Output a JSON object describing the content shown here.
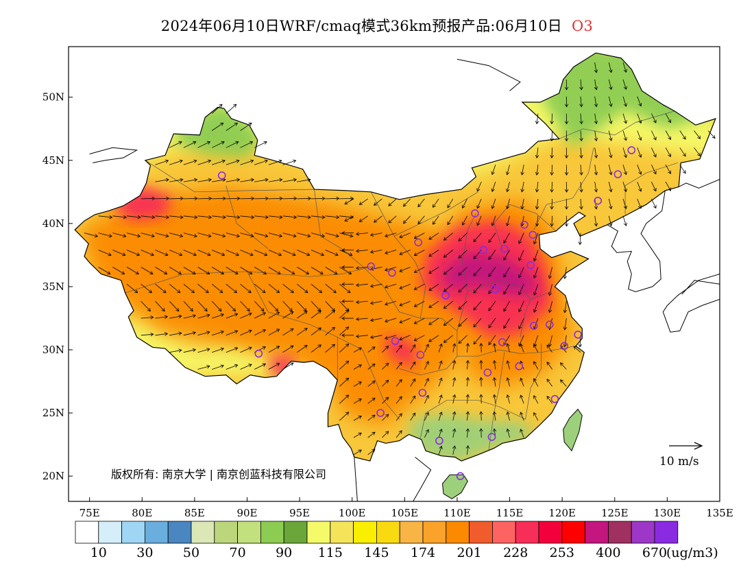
{
  "title": {
    "text": "2024年06月10日WRF/cmaq模式36km预报产品:06月10日",
    "species": "O3"
  },
  "copyright": "版权所有: 南京大学 | 南京创蓝科技有限公司",
  "wind_scale_label": "10  m/s",
  "colorbar": {
    "colors": [
      "#ffffff",
      "#d6eefa",
      "#9fd6f3",
      "#6aaede",
      "#4a86c0",
      "#dbe8b6",
      "#bcd67c",
      "#c2e07e",
      "#8ccc52",
      "#6aa63a",
      "#f4fa6a",
      "#f4e45a",
      "#fbef00",
      "#f9da10",
      "#f8b445",
      "#fba22a",
      "#fb8a00",
      "#f05c2c",
      "#fd6363",
      "#f72e57",
      "#f3003c",
      "#ff0000",
      "#c3167e",
      "#a03060",
      "#9c37c7",
      "#8a2be2"
    ],
    "labels": [
      "10",
      "30",
      "50",
      "70",
      "90",
      "115",
      "145",
      "174",
      "201",
      "228",
      "253",
      "400",
      "670"
    ],
    "unit": "(ug/m3)"
  },
  "axes": {
    "lon_ticks": [
      "75E",
      "80E",
      "85E",
      "90E",
      "95E",
      "100E",
      "105E",
      "110E",
      "115E",
      "120E",
      "125E",
      "130E",
      "135E"
    ],
    "lat_ticks": [
      "20N",
      "25N",
      "30N",
      "35N",
      "40N",
      "45N",
      "50N"
    ]
  },
  "map": {
    "lon_range": [
      73,
      135
    ],
    "lat_range": [
      18,
      54
    ],
    "layers": {
      "land_outside": "#ffffff",
      "base_fill": "#f8c73a",
      "north_green": "#8ccc52",
      "yellow_belt": "#f4fa6a",
      "orange_core": "#fb8a00",
      "red_core": "#f72e57",
      "purple_core": "#c3167e",
      "south_green": "#9dd07a"
    },
    "stations": [
      {
        "lon": 87.6,
        "lat": 43.8
      },
      {
        "lon": 91.1,
        "lat": 29.7
      },
      {
        "lon": 101.8,
        "lat": 36.6
      },
      {
        "lon": 103.8,
        "lat": 36.1
      },
      {
        "lon": 106.3,
        "lat": 38.5
      },
      {
        "lon": 111.7,
        "lat": 40.8
      },
      {
        "lon": 116.4,
        "lat": 39.9
      },
      {
        "lon": 117.2,
        "lat": 39.1
      },
      {
        "lon": 114.5,
        "lat": 38.0
      },
      {
        "lon": 112.5,
        "lat": 37.9
      },
      {
        "lon": 117.0,
        "lat": 36.7
      },
      {
        "lon": 113.6,
        "lat": 34.8
      },
      {
        "lon": 108.9,
        "lat": 34.3
      },
      {
        "lon": 104.1,
        "lat": 30.7
      },
      {
        "lon": 106.5,
        "lat": 29.6
      },
      {
        "lon": 114.3,
        "lat": 30.6
      },
      {
        "lon": 112.9,
        "lat": 28.2
      },
      {
        "lon": 115.9,
        "lat": 28.7
      },
      {
        "lon": 117.3,
        "lat": 31.9
      },
      {
        "lon": 118.8,
        "lat": 32.0
      },
      {
        "lon": 120.2,
        "lat": 30.3
      },
      {
        "lon": 121.5,
        "lat": 31.2
      },
      {
        "lon": 119.3,
        "lat": 26.1
      },
      {
        "lon": 113.3,
        "lat": 23.1
      },
      {
        "lon": 108.3,
        "lat": 22.8
      },
      {
        "lon": 110.3,
        "lat": 20.0
      },
      {
        "lon": 106.7,
        "lat": 26.6
      },
      {
        "lon": 102.7,
        "lat": 25.0
      },
      {
        "lon": 123.4,
        "lat": 41.8
      },
      {
        "lon": 125.3,
        "lat": 43.9
      },
      {
        "lon": 126.6,
        "lat": 45.8
      }
    ]
  }
}
